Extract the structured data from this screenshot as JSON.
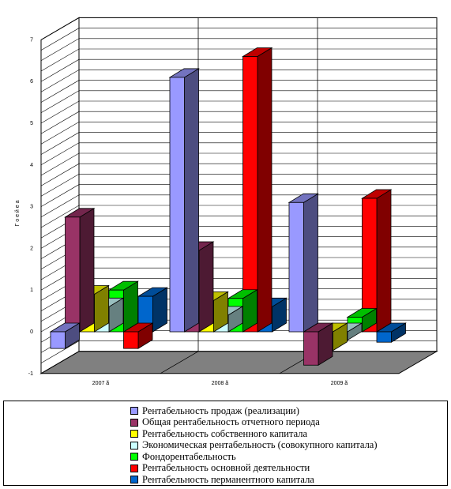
{
  "chart_data": {
    "type": "bar",
    "ylabel": "Г о е й е а",
    "ylim": [
      -1,
      7
    ],
    "yticks": [
      "-1",
      "0",
      "1",
      "2",
      "3",
      "4",
      "5",
      "6",
      "7"
    ],
    "grid": true,
    "legend_position": "bottom",
    "categories": [
      "2007 ã",
      "2008 ã",
      "2009 ã"
    ],
    "series": [
      {
        "name": "Рентабельность продаж (реализации)",
        "color": "#9999ff",
        "values": [
          -0.4,
          6.1,
          3.1
        ]
      },
      {
        "name": "Общая рентабельность отчетного периода",
        "color": "#993366",
        "values": [
          2.75,
          1.95,
          -0.8
        ]
      },
      {
        "name": "Рентабельность собственного капитала",
        "color": "#ffff00",
        "values": [
          0.9,
          0.75,
          -0.45
        ]
      },
      {
        "name": "Экономическая рентабельность (совокупного капитала)",
        "color": "#ccffff",
        "values": [
          0.6,
          0.4,
          -0.2
        ]
      },
      {
        "name": "Фондорентабельность",
        "color": "#00ff00",
        "values": [
          1.0,
          0.8,
          0.35
        ]
      },
      {
        "name": "Рентабельность основной деятельности",
        "color": "#ff0000",
        "values": [
          -0.4,
          6.6,
          3.2
        ]
      },
      {
        "name": "Рентабельность перманентного капитала",
        "color": "#0066cc",
        "values": [
          0.85,
          0.6,
          -0.25
        ]
      }
    ]
  }
}
